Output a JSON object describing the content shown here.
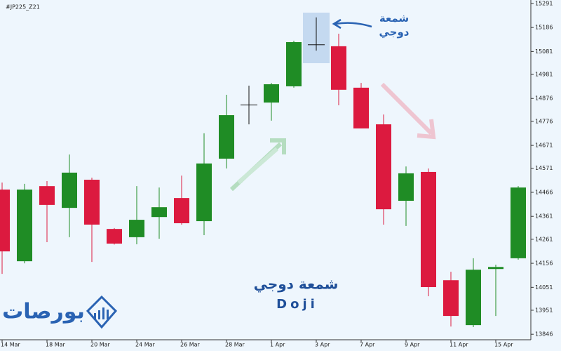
{
  "chart_data": {
    "type": "candlestick",
    "symbol": "#JP225_Z21",
    "categories": [
      "14 Mar",
      null,
      "18 Mar",
      null,
      "20 Mar",
      null,
      "24 Mar",
      null,
      "26 Mar",
      null,
      "28 Mar",
      null,
      "1 Apr",
      null,
      "3 Apr",
      null,
      "7 Apr",
      null,
      "9 Apr",
      null,
      "11 Apr",
      null,
      "15 Apr",
      null
    ],
    "open": [
      14478,
      14165,
      14493,
      14398,
      14521,
      14306,
      14270,
      14358,
      14441,
      14340,
      14613,
      14846,
      14858,
      14929,
      15110,
      15104,
      14923,
      14763,
      14429,
      14555,
      14082,
      13886,
      14131,
      14178
    ],
    "high": [
      14509,
      14503,
      14515,
      14631,
      14530,
      14310,
      14493,
      14487,
      14539,
      14724,
      14892,
      14932,
      14944,
      15128,
      15230,
      15159,
      14944,
      14806,
      14579,
      14570,
      14119,
      14178,
      14150,
      14493
    ],
    "low": [
      14110,
      14156,
      14248,
      14270,
      14162,
      14238,
      14239,
      14263,
      14325,
      14279,
      14570,
      14763,
      14779,
      14923,
      15085,
      14846,
      14745,
      14325,
      14319,
      14012,
      13880,
      13877,
      13926,
      14172
    ],
    "close": [
      14208,
      14478,
      14411,
      14552,
      14325,
      14242,
      14346,
      14401,
      14331,
      14592,
      14803,
      14849,
      14938,
      15122,
      15112,
      14914,
      14745,
      14392,
      14549,
      14052,
      13926,
      14128,
      14140,
      14487
    ],
    "up_color": "#1f8c25",
    "down_color": "#dc1a3f",
    "ylim": [
      13822,
      15306
    ],
    "yticks": [
      13846,
      13951,
      14051,
      14156,
      14261,
      14361,
      14466,
      14571,
      14671,
      14776,
      14876,
      14981,
      15081,
      15186,
      15291
    ],
    "callout": "شمعة\nدوجي",
    "caption_ar": "شمعة دوجي",
    "caption_en": "Doji",
    "brand": "بورصات"
  }
}
